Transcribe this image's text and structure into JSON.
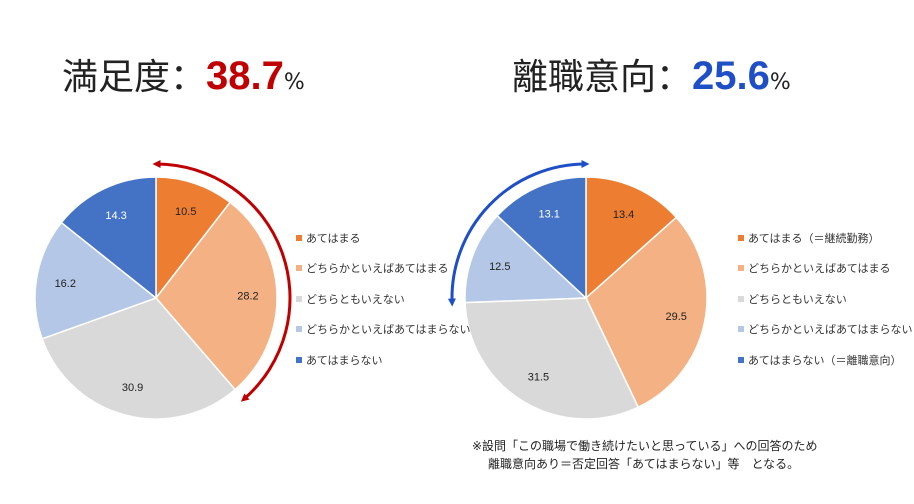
{
  "headline_left": {
    "label": "満足度：",
    "value": "38.7",
    "unit": "%",
    "color": "#c00000"
  },
  "headline_right": {
    "label": "離職意向：",
    "value": "25.6",
    "unit": "%",
    "color": "#1f4fc6"
  },
  "note": {
    "line1": "※設問「この職場で働き続けたいと思っている」への回答のため",
    "line2": "離職意向あり＝否定回答「あてはまらない」等　となる。"
  },
  "chart_data": [
    {
      "type": "pie",
      "categories": [
        "あてはまる",
        "どちらかといえばあてはまる",
        "どちらともいえない",
        "どちらかといえばあてはまらない",
        "あてはまらない"
      ],
      "values": [
        10.5,
        28.2,
        30.9,
        16.2,
        14.3
      ],
      "labels": [
        "10.5",
        "28.2",
        "30.9",
        "16.2",
        "14.3"
      ],
      "colors": [
        "#ed7d31",
        "#f4b183",
        "#d9d9d9",
        "#b4c7e7",
        "#4472c4"
      ],
      "label_colors": [
        "#222222",
        "#222222",
        "#222222",
        "#222222",
        "#ffffff"
      ],
      "start": "12 o'clock",
      "direction": "clockwise",
      "legend_position": "right",
      "highlight": {
        "color": "#c00000",
        "covers": [
          "あてはまる",
          "どちらかといえばあてはまる"
        ],
        "total": 38.7
      }
    },
    {
      "type": "pie",
      "categories": [
        "あてはまる（＝継続勤務）",
        "どちらかといえばあてはまる",
        "どちらともいえない",
        "どちらかといえばあてはまらない",
        "あてはまらない（＝離職意向）"
      ],
      "values": [
        13.4,
        29.5,
        31.5,
        12.5,
        13.1
      ],
      "labels": [
        "13.4",
        "29.5",
        "31.5",
        "12.5",
        "13.1"
      ],
      "colors": [
        "#ed7d31",
        "#f4b183",
        "#d9d9d9",
        "#b4c7e7",
        "#4472c4"
      ],
      "label_colors": [
        "#222222",
        "#222222",
        "#222222",
        "#222222",
        "#ffffff"
      ],
      "start": "12 o'clock",
      "direction": "clockwise",
      "legend_position": "right",
      "highlight": {
        "color": "#1f4fc6",
        "covers": [
          "どちらかといえばあてはまらない",
          "あてはまらない（＝離職意向）"
        ],
        "total": 25.6
      }
    }
  ]
}
